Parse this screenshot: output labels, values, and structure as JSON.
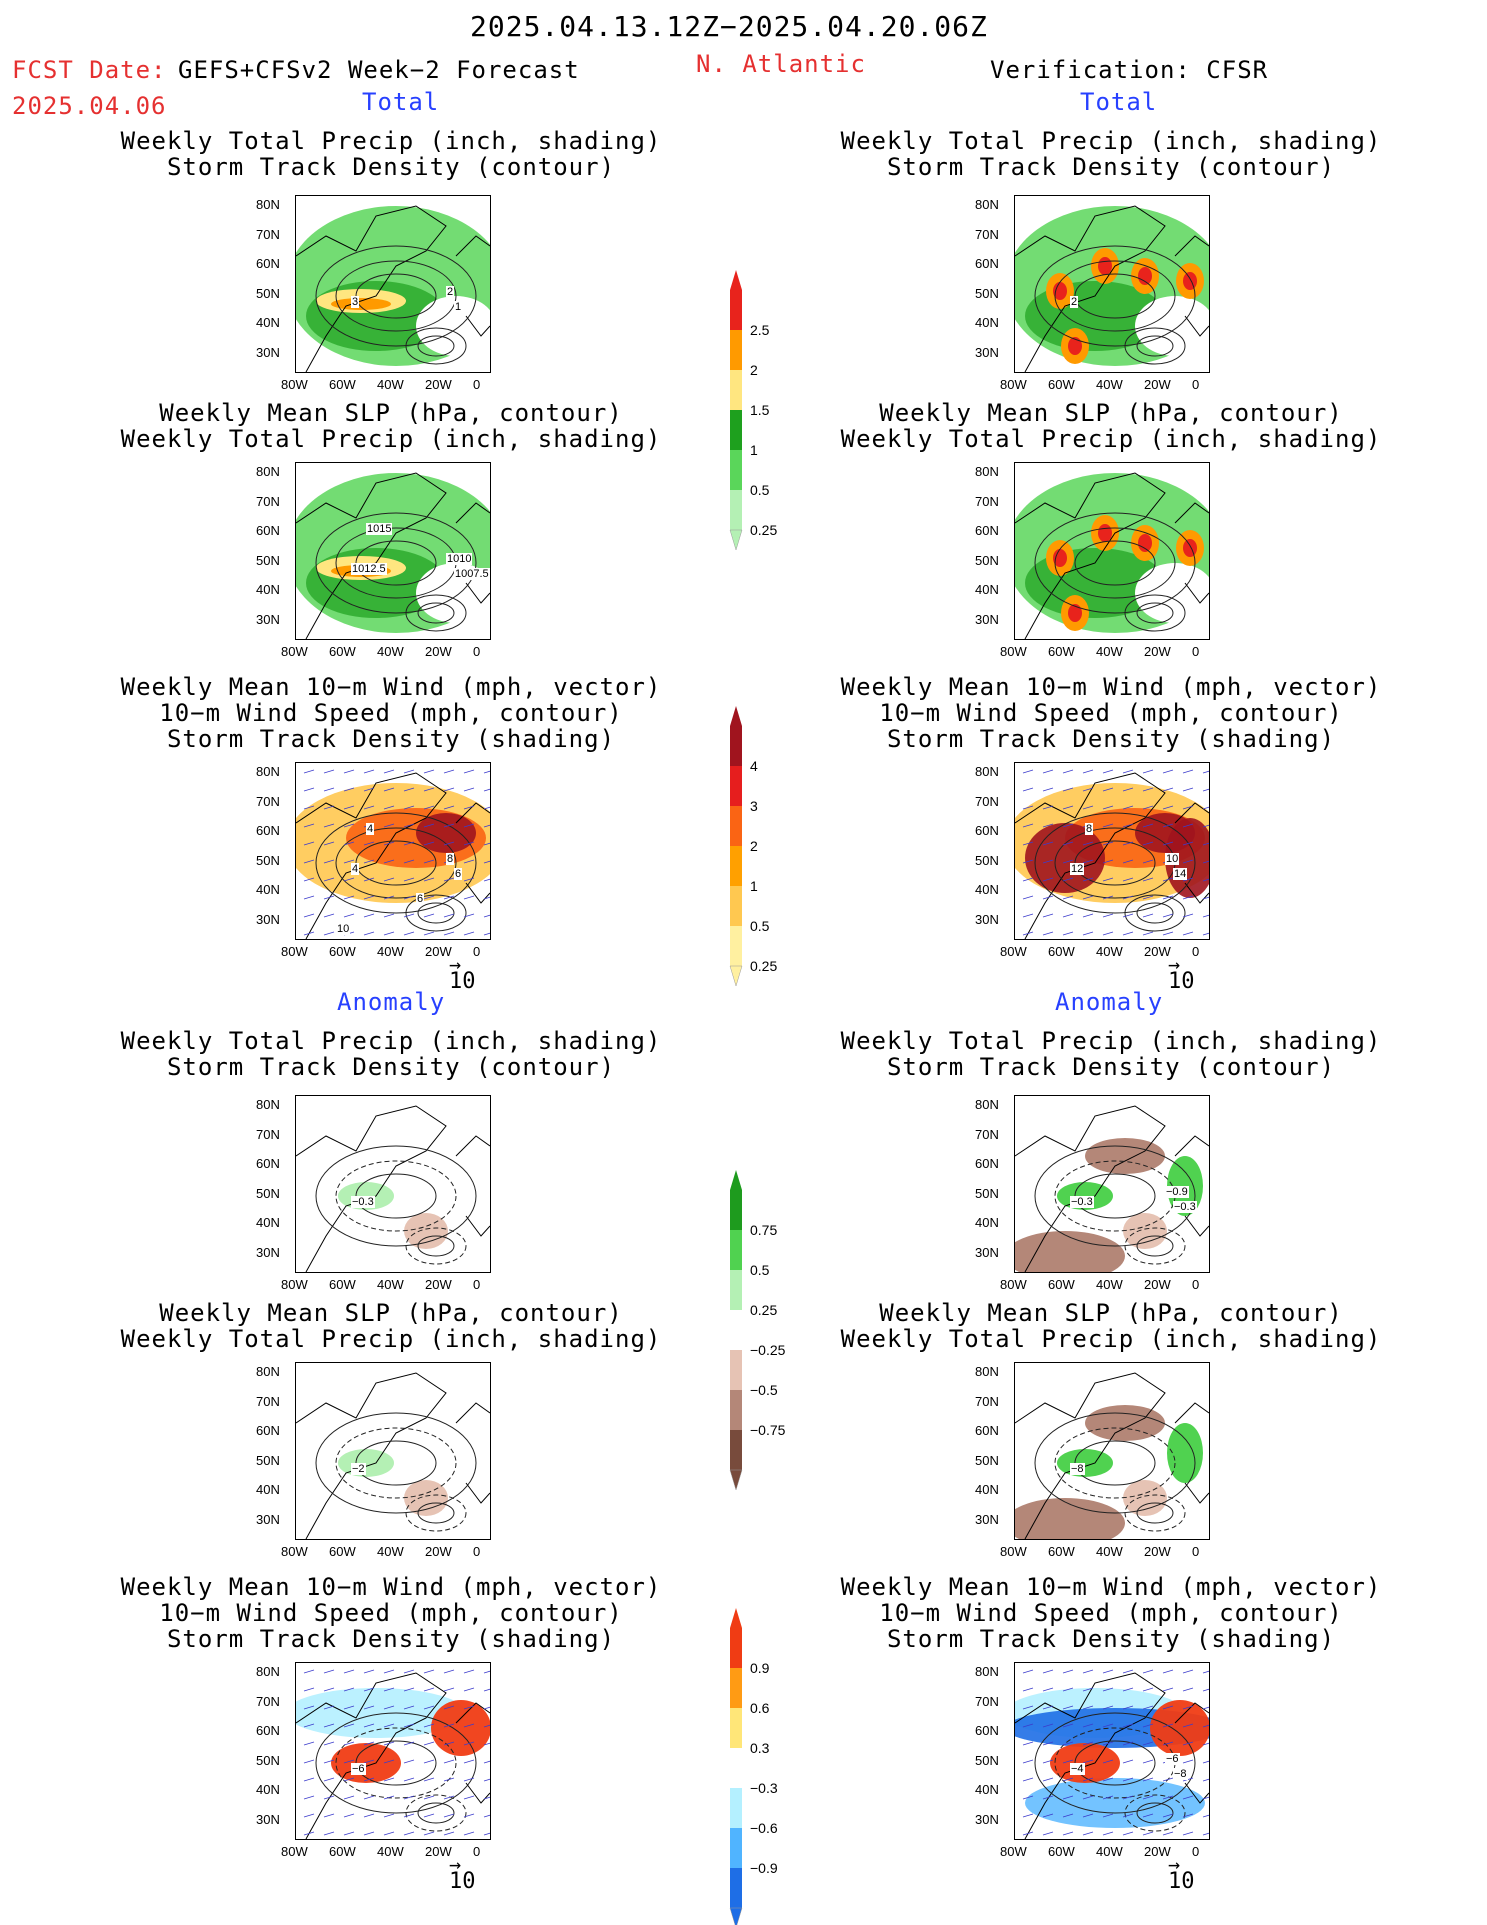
{
  "header": {
    "period": "2025.04.13.12Z−2025.04.20.06Z",
    "fcst_label": "FCST Date:",
    "model": "GEFS+CFSv2 Week−2 Forecast",
    "fcst_date": "2025.04.06",
    "region": "N. Atlantic",
    "verification": "Verification: CFSR"
  },
  "sections": {
    "total": "Total",
    "anomaly": "Anomaly"
  },
  "panel_titles": {
    "precip_storm": [
      "Weekly Total Precip (inch, shading)",
      "Storm Track Density (contour)"
    ],
    "slp_precip": [
      "Weekly Mean SLP (hPa, contour)",
      "Weekly Total Precip (inch, shading)"
    ],
    "wind_storm": [
      "Weekly Mean 10−m Wind (mph, vector)",
      "10−m Wind Speed (mph, contour)",
      "Storm Track Density (shading)"
    ]
  },
  "axes": {
    "lat_ticks": [
      "80N",
      "70N",
      "60N",
      "50N",
      "40N",
      "30N"
    ],
    "lon_ticks": [
      "80W",
      "60W",
      "40W",
      "20W",
      "0"
    ]
  },
  "vector_reference": "10",
  "colorbars": [
    {
      "name": "total-precip",
      "labels": [
        "2.5",
        "2",
        "1.5",
        "1",
        "0.5",
        "0.25"
      ],
      "colors": [
        "#e8231c",
        "#ff9a00",
        "#ffe680",
        "#1ea01e",
        "#5ad65a",
        "#b4f0b4"
      ]
    },
    {
      "name": "total-storm-density",
      "labels": [
        "4",
        "3",
        "2",
        "1",
        "0.5",
        "0.25"
      ],
      "colors": [
        "#a0141e",
        "#e61e1e",
        "#fa6414",
        "#ffa000",
        "#ffc850",
        "#fff0a0"
      ]
    },
    {
      "name": "anomaly-precip",
      "labels": [
        "0.75",
        "0.5",
        "0.25",
        "−0.25",
        "−0.5",
        "−0.75"
      ],
      "colors": [
        "#1e9b1e",
        "#50d250",
        "#b4f0b4",
        "#ffffff",
        "#e6c3b4",
        "#b48778",
        "#784b3c"
      ]
    },
    {
      "name": "anomaly-storm-density",
      "labels": [
        "0.9",
        "0.6",
        "0.3",
        "−0.3",
        "−0.6",
        "−0.9"
      ],
      "colors": [
        "#f03c14",
        "#ff9b14",
        "#ffe678",
        "#ffffff",
        "#b4f0ff",
        "#50b4ff",
        "#1e6ee6"
      ]
    }
  ],
  "contour_labels": {
    "fcst_total_storm": [
      "3",
      "2",
      "1"
    ],
    "fcst_total_slp": [
      "1012.5",
      "1010",
      "1007.5",
      "1015"
    ],
    "fcst_total_wind": [
      "4",
      "8",
      "6",
      "4",
      "6",
      "10"
    ],
    "ver_total_storm": [
      "2"
    ],
    "ver_total_wind": [
      "12",
      "10",
      "14",
      "8"
    ],
    "fcst_anom_storm": [
      "−0.3"
    ],
    "fcst_anom_slp": [
      "−2"
    ],
    "ver_anom_storm": [
      "−0.3",
      "−0.9",
      "−0.3"
    ],
    "ver_anom_slp": [
      "−8"
    ],
    "fcst_anom_wind": [
      "−6"
    ],
    "ver_anom_wind": [
      "−4",
      "−6",
      "−8"
    ]
  },
  "colors": {
    "title_red": "#e53030",
    "section_blue": "#2740ff"
  }
}
